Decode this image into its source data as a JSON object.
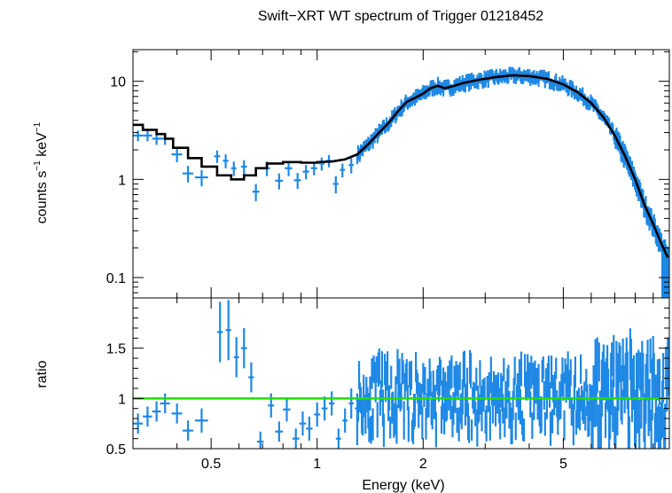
{
  "chart_data": {
    "type": "scatter",
    "title": "Swift−XRT WT spectrum of Trigger 01218452",
    "xlabel": "Energy (keV)",
    "xscale": "log",
    "xlim": [
      0.3,
      10
    ],
    "x_ticks": [
      {
        "v": 0.5,
        "label": "0.5"
      },
      {
        "v": 1,
        "label": "1"
      },
      {
        "v": 2,
        "label": "2"
      },
      {
        "v": 5,
        "label": "5"
      }
    ],
    "colors": {
      "data": "#1e88e5",
      "model": "#000000",
      "unity": "#22dd00",
      "frame": "#000000"
    },
    "panels": [
      {
        "name": "spectrum",
        "ylabel_main": "counts s",
        "ylabel_sup1": "−1",
        "ylabel_mid": " keV",
        "ylabel_sup2": "−1",
        "yscale": "log",
        "ylim": [
          0.062,
          21
        ],
        "y_ticks": [
          {
            "v": 0.1,
            "label": "0.1"
          },
          {
            "v": 1,
            "label": "1"
          },
          {
            "v": 10,
            "label": "10"
          }
        ],
        "data": [
          [
            0.31,
            2.8,
            0.01,
            0.35
          ],
          [
            0.33,
            2.8,
            0.01,
            0.35
          ],
          [
            0.35,
            2.6,
            0.01,
            0.35
          ],
          [
            0.37,
            2.6,
            0.012,
            0.35
          ],
          [
            0.4,
            1.8,
            0.014,
            0.3
          ],
          [
            0.43,
            1.15,
            0.015,
            0.22
          ],
          [
            0.47,
            1.05,
            0.02,
            0.2
          ],
          [
            0.52,
            1.72,
            0.01,
            0.25
          ],
          [
            0.55,
            1.55,
            0.01,
            0.25
          ],
          [
            0.58,
            1.3,
            0.01,
            0.22
          ],
          [
            0.62,
            1.35,
            0.012,
            0.22
          ],
          [
            0.67,
            0.75,
            0.015,
            0.15
          ],
          [
            0.72,
            1.3,
            0.015,
            0.22
          ],
          [
            0.78,
            0.97,
            0.02,
            0.18
          ],
          [
            0.83,
            1.3,
            0.02,
            0.22
          ],
          [
            0.88,
            0.98,
            0.02,
            0.18
          ],
          [
            0.93,
            1.2,
            0.02,
            0.2
          ],
          [
            0.98,
            1.3,
            0.02,
            0.2
          ],
          [
            1.03,
            1.45,
            0.02,
            0.22
          ],
          [
            1.08,
            1.55,
            0.02,
            0.22
          ],
          [
            1.13,
            0.9,
            0.02,
            0.18
          ],
          [
            1.18,
            1.25,
            0.02,
            0.2
          ],
          [
            1.25,
            1.4,
            0.02,
            0.25
          ],
          [
            1.32,
            1.8,
            0.02,
            0.3
          ],
          [
            1.4,
            2.3,
            0.02,
            0.35
          ],
          [
            1.5,
            3.2,
            0.02,
            0.5
          ]
        ],
        "dense_data": {
          "x_start": 1.3,
          "x_end": 9.9,
          "count": 340,
          "jitter": 0.1,
          "rel_err": 0.12,
          "low_rel_err": 0.35
        },
        "model": [
          [
            0.3,
            3.6
          ],
          [
            0.32,
            3.6
          ],
          [
            0.32,
            3.2
          ],
          [
            0.35,
            3.2
          ],
          [
            0.35,
            2.9
          ],
          [
            0.37,
            2.9
          ],
          [
            0.37,
            2.6
          ],
          [
            0.39,
            2.6
          ],
          [
            0.39,
            2.1
          ],
          [
            0.43,
            2.1
          ],
          [
            0.43,
            1.65
          ],
          [
            0.47,
            1.65
          ],
          [
            0.47,
            1.35
          ],
          [
            0.52,
            1.35
          ],
          [
            0.52,
            1.1
          ],
          [
            0.57,
            1.1
          ],
          [
            0.57,
            1.0
          ],
          [
            0.62,
            1.0
          ],
          [
            0.62,
            1.1
          ],
          [
            0.67,
            1.1
          ],
          [
            0.67,
            1.3
          ],
          [
            0.72,
            1.3
          ],
          [
            0.72,
            1.45
          ],
          [
            0.8,
            1.45
          ],
          [
            0.8,
            1.5
          ],
          [
            0.9,
            1.5
          ],
          [
            0.9,
            1.48
          ],
          [
            1.0,
            1.48
          ],
          [
            1.0,
            1.5
          ],
          [
            1.1,
            1.52
          ],
          [
            1.2,
            1.6
          ],
          [
            1.3,
            1.8
          ],
          [
            1.4,
            2.3
          ],
          [
            1.5,
            3.0
          ],
          [
            1.6,
            3.8
          ],
          [
            1.7,
            5.0
          ],
          [
            1.8,
            6.2
          ],
          [
            1.9,
            6.8
          ],
          [
            2.0,
            7.5
          ],
          [
            2.1,
            8.5
          ],
          [
            2.2,
            9.0
          ],
          [
            2.3,
            8.5
          ],
          [
            2.4,
            8.8
          ],
          [
            2.6,
            9.6
          ],
          [
            2.9,
            10.4
          ],
          [
            3.2,
            11.0
          ],
          [
            3.6,
            11.5
          ],
          [
            4.0,
            11.3
          ],
          [
            4.5,
            10.6
          ],
          [
            5.0,
            9.3
          ],
          [
            5.5,
            7.7
          ],
          [
            6.0,
            6.0
          ],
          [
            6.5,
            4.3
          ],
          [
            7.0,
            2.8
          ],
          [
            7.5,
            1.7
          ],
          [
            8.0,
            1.0
          ],
          [
            8.5,
            0.55
          ],
          [
            9.0,
            0.35
          ],
          [
            9.5,
            0.22
          ],
          [
            9.9,
            0.16
          ]
        ]
      },
      {
        "name": "ratio",
        "ylabel": "ratio",
        "yscale": "linear",
        "ylim": [
          0.5,
          2.0
        ],
        "y_ticks": [
          {
            "v": 0.5,
            "label": "0.5"
          },
          {
            "v": 1,
            "label": "1"
          },
          {
            "v": 1.5,
            "label": "1.5"
          }
        ],
        "unity_line": 1,
        "data": [
          [
            0.31,
            0.75,
            0.01,
            0.1
          ],
          [
            0.33,
            0.82,
            0.01,
            0.1
          ],
          [
            0.35,
            0.87,
            0.01,
            0.1
          ],
          [
            0.37,
            0.95,
            0.012,
            0.1
          ],
          [
            0.4,
            0.85,
            0.014,
            0.1
          ],
          [
            0.43,
            0.68,
            0.015,
            0.1
          ],
          [
            0.47,
            0.78,
            0.02,
            0.12
          ],
          [
            0.53,
            1.66,
            0.01,
            0.3
          ],
          [
            0.56,
            1.68,
            0.01,
            0.3
          ],
          [
            0.59,
            1.41,
            0.01,
            0.2
          ],
          [
            0.62,
            1.5,
            0.012,
            0.2
          ],
          [
            0.65,
            1.21,
            0.012,
            0.15
          ],
          [
            0.69,
            0.57,
            0.015,
            0.1
          ],
          [
            0.74,
            0.93,
            0.015,
            0.12
          ],
          [
            0.78,
            0.67,
            0.02,
            0.1
          ],
          [
            0.82,
            0.89,
            0.02,
            0.12
          ],
          [
            0.87,
            0.6,
            0.02,
            0.1
          ],
          [
            0.91,
            0.75,
            0.02,
            0.12
          ],
          [
            0.95,
            0.7,
            0.02,
            0.12
          ],
          [
            1.0,
            0.84,
            0.02,
            0.12
          ],
          [
            1.05,
            0.9,
            0.02,
            0.12
          ],
          [
            1.1,
            0.95,
            0.02,
            0.12
          ],
          [
            1.15,
            0.6,
            0.02,
            0.1
          ],
          [
            1.2,
            0.78,
            0.02,
            0.12
          ],
          [
            1.25,
            0.95,
            0.02,
            0.15
          ],
          [
            1.3,
            0.9,
            0.02,
            0.15
          ]
        ],
        "dense_data": {
          "x_start": 1.3,
          "x_end": 9.9,
          "count": 340,
          "center": 1.0,
          "spread": 0.32,
          "err": 0.15
        }
      }
    ]
  }
}
